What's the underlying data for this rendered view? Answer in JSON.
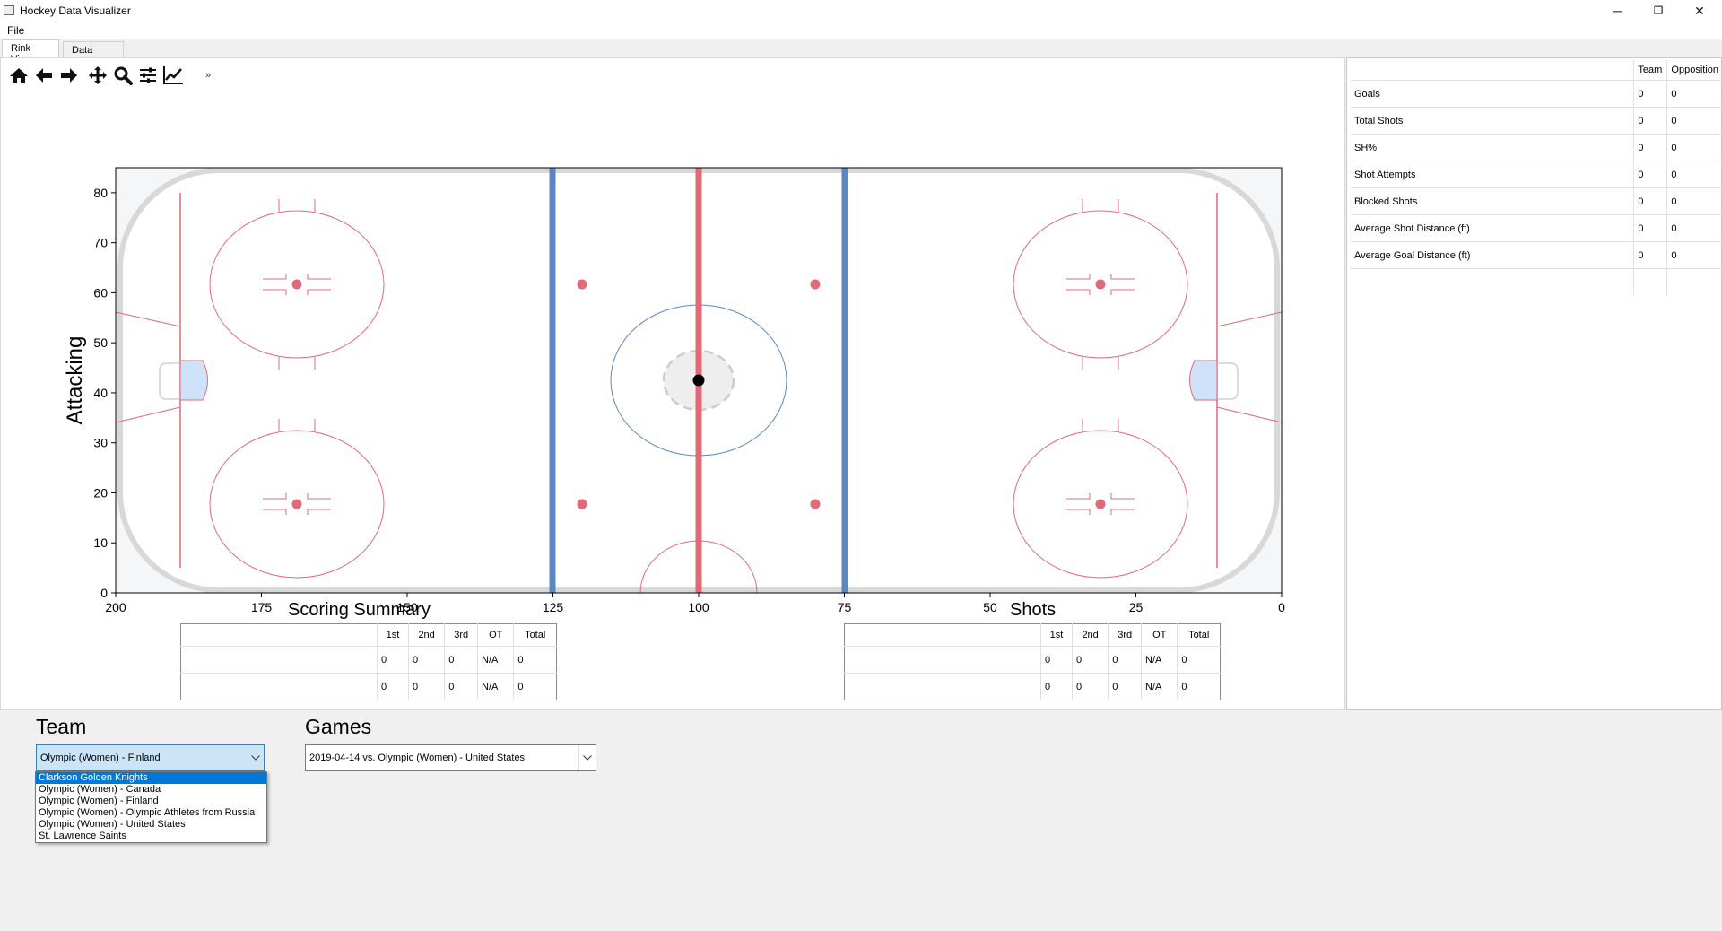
{
  "window": {
    "title": "Hockey Data Visualizer",
    "minimize": "─",
    "maximize": "❐",
    "close": "✕"
  },
  "menu": {
    "file": "File"
  },
  "tabs": [
    {
      "label": "Rink View"
    },
    {
      "label": "Data View"
    }
  ],
  "toolbar": {
    "more": "»",
    "icons": [
      "home-icon",
      "back-arrow-icon",
      "forward-arrow-icon",
      "pan-icon",
      "zoom-icon",
      "configure-subplots-icon",
      "edit-axis-icon"
    ]
  },
  "rink": {
    "ylabel": "Attacking",
    "xticks": [
      "200",
      "175",
      "150",
      "125",
      "100",
      "75",
      "50",
      "25",
      "0"
    ],
    "yticks": [
      "0",
      "10",
      "20",
      "30",
      "40",
      "50",
      "60",
      "70",
      "80"
    ],
    "xlim": [
      200,
      0
    ],
    "ylim": [
      0,
      85
    ],
    "colors": {
      "redline": "#e06a77",
      "blueline": "#5b88c2",
      "board": "#d8d8d8",
      "crease": "#cfe2fa",
      "ice_edge": "#f4f6f8"
    }
  },
  "stats": {
    "headers": [
      "",
      "Team",
      "Opposition"
    ],
    "rows": [
      {
        "label": "Goals",
        "team": "0",
        "opp": "0"
      },
      {
        "label": "Total Shots",
        "team": "0",
        "opp": "0"
      },
      {
        "label": "SH%",
        "team": "0",
        "opp": "0"
      },
      {
        "label": "Shot Attempts",
        "team": "0",
        "opp": "0"
      },
      {
        "label": "Blocked Shots",
        "team": "0",
        "opp": "0"
      },
      {
        "label": "Average Shot Distance (ft)",
        "team": "0",
        "opp": "0"
      },
      {
        "label": "Average Goal Distance (ft)",
        "team": "0",
        "opp": "0"
      }
    ]
  },
  "scoring_summary": {
    "title": "Scoring Summary",
    "headers": [
      "",
      "1st",
      "2nd",
      "3rd",
      "OT",
      "Total"
    ],
    "rows": [
      [
        "",
        "0",
        "0",
        "0",
        "N/A",
        "0"
      ],
      [
        "",
        "0",
        "0",
        "0",
        "N/A",
        "0"
      ]
    ]
  },
  "shots_summary": {
    "title": "Shots",
    "headers": [
      "",
      "1st",
      "2nd",
      "3rd",
      "OT",
      "Total"
    ],
    "rows": [
      [
        "",
        "0",
        "0",
        "0",
        "N/A",
        "0"
      ],
      [
        "",
        "0",
        "0",
        "0",
        "N/A",
        "0"
      ]
    ]
  },
  "team": {
    "label": "Team",
    "selected": "Olympic (Women) - Finland",
    "options": [
      "Clarkson Golden Knights",
      "Olympic (Women) - Canada",
      "Olympic (Women) - Finland",
      "Olympic (Women) - Olympic Athletes from Russia",
      "Olympic (Women) - United States",
      "St. Lawrence Saints"
    ],
    "highlighted_option": "Clarkson Golden Knights"
  },
  "games": {
    "label": "Games",
    "selected": "2019-04-14 vs. Olympic (Women) - United States"
  }
}
